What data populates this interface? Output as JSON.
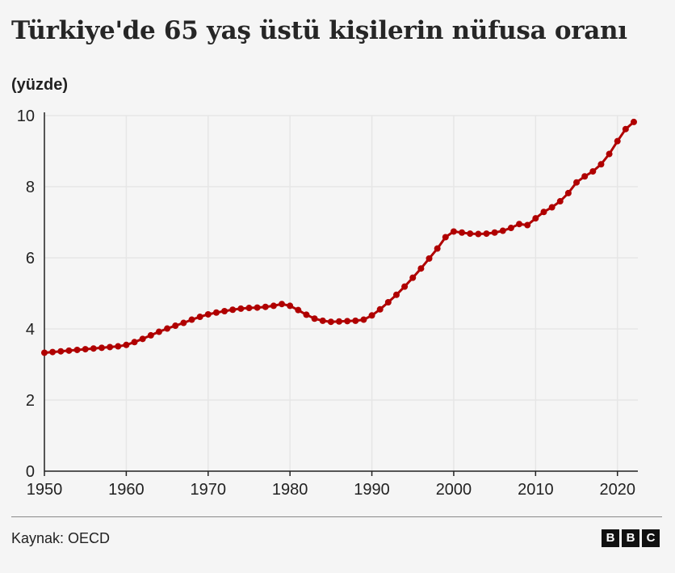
{
  "title": "Türkiye'de 65 yaş üstü kişilerin nüfusa oranı",
  "unit_label": "(yüzde)",
  "source": "Kaynak: OECD",
  "logo": [
    "B",
    "B",
    "C"
  ],
  "colors": {
    "line": "#b00000",
    "background": "#f5f5f5",
    "grid": "#e6e6e6",
    "axis": "#222222"
  },
  "chart_data": {
    "type": "line",
    "title": "Türkiye'de 65 yaş üstü kişilerin nüfusa oranı",
    "ylabel": "(yüzde)",
    "xlabel": "",
    "xlim": [
      1950,
      2022
    ],
    "ylim": [
      0,
      10
    ],
    "x_ticks": [
      1950,
      1960,
      1970,
      1980,
      1990,
      2000,
      2010,
      2020
    ],
    "y_ticks": [
      0,
      2,
      4,
      6,
      8,
      10
    ],
    "grid": true,
    "markers": true,
    "series": [
      {
        "x": [
          1950,
          1951,
          1952,
          1953,
          1954,
          1955,
          1956,
          1957,
          1958,
          1959,
          1960,
          1961,
          1962,
          1963,
          1964,
          1965,
          1966,
          1967,
          1968,
          1969,
          1970,
          1971,
          1972,
          1973,
          1974,
          1975,
          1976,
          1977,
          1978,
          1979,
          1980,
          1981,
          1982,
          1983,
          1984,
          1985,
          1986,
          1987,
          1988,
          1989,
          1990,
          1991,
          1992,
          1993,
          1994,
          1995,
          1996,
          1997,
          1998,
          1999,
          2000,
          2001,
          2002,
          2003,
          2004,
          2005,
          2006,
          2007,
          2008,
          2009,
          2010,
          2011,
          2012,
          2013,
          2014,
          2015,
          2016,
          2017,
          2018,
          2019,
          2020,
          2021,
          2022
        ],
        "values": [
          3.33,
          3.35,
          3.37,
          3.39,
          3.41,
          3.43,
          3.45,
          3.47,
          3.49,
          3.51,
          3.55,
          3.63,
          3.72,
          3.82,
          3.92,
          4.01,
          4.09,
          4.17,
          4.26,
          4.34,
          4.41,
          4.46,
          4.5,
          4.54,
          4.57,
          4.59,
          4.6,
          4.62,
          4.65,
          4.7,
          4.65,
          4.53,
          4.4,
          4.29,
          4.23,
          4.2,
          4.21,
          4.22,
          4.23,
          4.26,
          4.38,
          4.55,
          4.75,
          4.96,
          5.19,
          5.44,
          5.7,
          5.98,
          6.26,
          6.58,
          6.74,
          6.71,
          6.68,
          6.67,
          6.68,
          6.71,
          6.76,
          6.84,
          6.95,
          6.92,
          7.11,
          7.29,
          7.42,
          7.59,
          7.82,
          8.12,
          8.29,
          8.43,
          8.63,
          8.92,
          9.28,
          9.62,
          9.82
        ]
      }
    ]
  }
}
